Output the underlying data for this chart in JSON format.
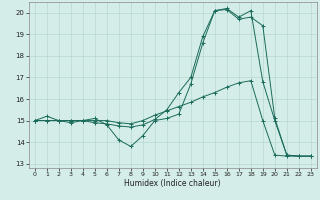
{
  "xlabel": "Humidex (Indice chaleur)",
  "bg_color": "#d4ede8",
  "grid_color": "#b8d8d2",
  "line_color": "#1a6b5a",
  "xlim": [
    -0.5,
    23.5
  ],
  "ylim": [
    12.8,
    20.5
  ],
  "yticks": [
    13,
    14,
    15,
    16,
    17,
    18,
    19,
    20
  ],
  "xticks": [
    0,
    1,
    2,
    3,
    4,
    5,
    6,
    7,
    8,
    9,
    10,
    11,
    12,
    13,
    14,
    15,
    16,
    17,
    18,
    19,
    20,
    21,
    22,
    23
  ],
  "line1_x": [
    0,
    1,
    2,
    3,
    4,
    5,
    6,
    7,
    8,
    9,
    10,
    11,
    12,
    13,
    14,
    15,
    16,
    17,
    18,
    19,
    20,
    21,
    22,
    23
  ],
  "line1_y": [
    15.0,
    15.2,
    15.0,
    15.0,
    15.0,
    15.1,
    14.8,
    14.1,
    13.8,
    14.3,
    15.0,
    15.1,
    15.3,
    16.7,
    18.6,
    20.1,
    20.2,
    19.8,
    20.1,
    16.8,
    15.0,
    13.4,
    13.35,
    13.35
  ],
  "line2_x": [
    0,
    1,
    2,
    3,
    4,
    5,
    6,
    7,
    8,
    9,
    10,
    11,
    12,
    13,
    14,
    15,
    16,
    17,
    18,
    19,
    20,
    21,
    22,
    23
  ],
  "line2_y": [
    15.0,
    15.0,
    15.0,
    15.0,
    15.0,
    15.0,
    15.0,
    14.9,
    14.85,
    15.0,
    15.25,
    15.45,
    15.65,
    15.85,
    16.1,
    16.3,
    16.55,
    16.75,
    16.85,
    15.0,
    13.4,
    13.35,
    13.35,
    13.35
  ],
  "line3_x": [
    0,
    1,
    2,
    3,
    4,
    5,
    6,
    7,
    8,
    9,
    10,
    11,
    12,
    13,
    14,
    15,
    16,
    17,
    18,
    19,
    20,
    21,
    22,
    23
  ],
  "line3_y": [
    15.0,
    15.0,
    15.0,
    14.9,
    15.0,
    14.9,
    14.85,
    14.75,
    14.7,
    14.8,
    15.05,
    15.5,
    16.3,
    17.0,
    18.9,
    20.1,
    20.15,
    19.7,
    19.8,
    19.4,
    15.1,
    13.4,
    13.35,
    13.35
  ]
}
